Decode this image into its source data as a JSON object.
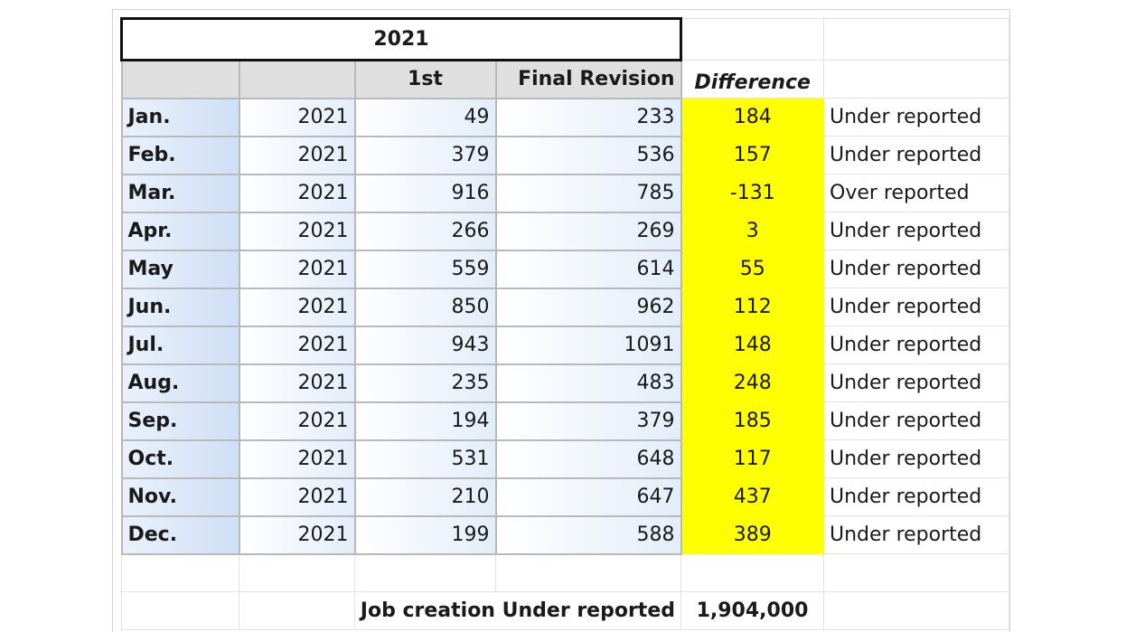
{
  "sheet": {
    "title": "2021",
    "headers": {
      "first": "1st",
      "final": "Final Revision",
      "difference": "Difference"
    },
    "rows": [
      {
        "month": "Jan.",
        "year": "2021",
        "first": "49",
        "final": "233",
        "diff": "184",
        "note": "Under reported"
      },
      {
        "month": "Feb.",
        "year": "2021",
        "first": "379",
        "final": "536",
        "diff": "157",
        "note": "Under reported"
      },
      {
        "month": "Mar.",
        "year": "2021",
        "first": "916",
        "final": "785",
        "diff": "-131",
        "note": "Over reported"
      },
      {
        "month": "Apr.",
        "year": "2021",
        "first": "266",
        "final": "269",
        "diff": "3",
        "note": "Under reported"
      },
      {
        "month": "May",
        "year": "2021",
        "first": "559",
        "final": "614",
        "diff": "55",
        "note": "Under reported"
      },
      {
        "month": "Jun.",
        "year": "2021",
        "first": "850",
        "final": "962",
        "diff": "112",
        "note": "Under reported"
      },
      {
        "month": "Jul.",
        "year": "2021",
        "first": "943",
        "final": "1091",
        "diff": "148",
        "note": "Under reported"
      },
      {
        "month": "Aug.",
        "year": "2021",
        "first": "235",
        "final": "483",
        "diff": "248",
        "note": "Under reported"
      },
      {
        "month": "Sep.",
        "year": "2021",
        "first": "194",
        "final": "379",
        "diff": "185",
        "note": "Under reported"
      },
      {
        "month": "Oct.",
        "year": "2021",
        "first": "531",
        "final": "648",
        "diff": "117",
        "note": "Under reported"
      },
      {
        "month": "Nov.",
        "year": "2021",
        "first": "210",
        "final": "647",
        "diff": "437",
        "note": "Under reported"
      },
      {
        "month": "Dec.",
        "year": "2021",
        "first": "199",
        "final": "588",
        "diff": "389",
        "note": "Under reported"
      }
    ],
    "summary": {
      "label": "Job creation Under reported",
      "value": "1,904,000"
    },
    "colors": {
      "highlight": "#ffff00",
      "header_bg": "#dfdfdf",
      "month_bg": "#cfdff5"
    }
  }
}
